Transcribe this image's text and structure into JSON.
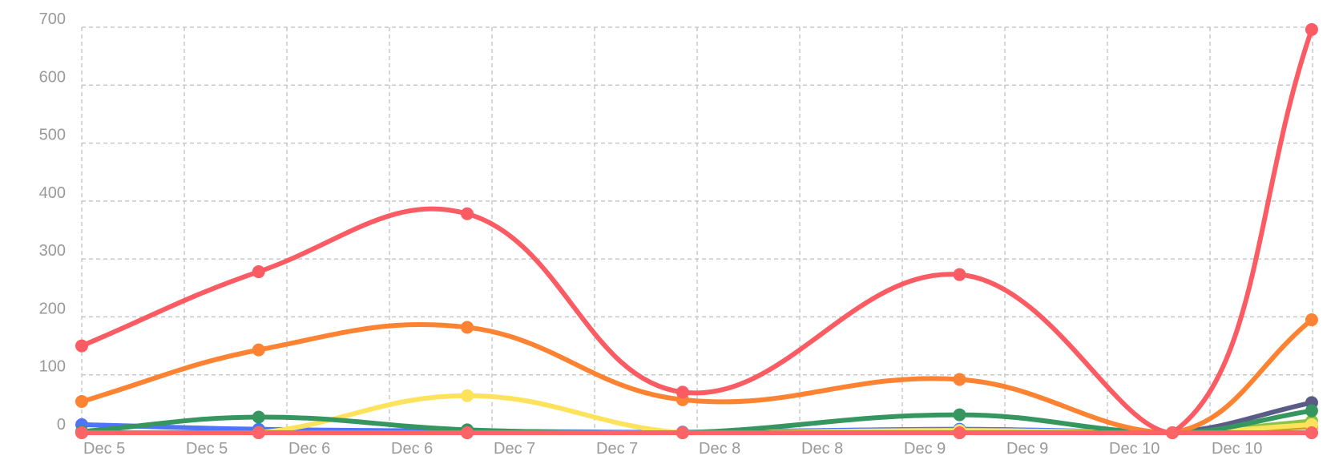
{
  "chart_data": {
    "type": "line",
    "title": "",
    "xlabel": "",
    "ylabel": "",
    "ylim": [
      0,
      700
    ],
    "yticks": [
      "0",
      "100",
      "200",
      "300",
      "400",
      "500",
      "600",
      "700"
    ],
    "ytick_values": [
      0,
      100,
      200,
      300,
      400,
      500,
      600,
      700
    ],
    "x_unit": "hours since Dec 5 00:00",
    "xlim": [
      0,
      144
    ],
    "xtick_labels": [
      "Dec 5",
      "Dec 5",
      "Dec 6",
      "Dec 6",
      "Dec 7",
      "Dec 7",
      "Dec 8",
      "Dec 8",
      "Dec 9",
      "Dec 9",
      "Dec 10",
      "Dec 10"
    ],
    "xtick_step_hours": 12,
    "grid": true,
    "x": [
      0,
      20.7,
      45.1,
      70.3,
      102.7,
      127.6,
      143.9
    ],
    "series": [
      {
        "color": "#4f74fa",
        "values": [
          14,
          6,
          3,
          1,
          6,
          0,
          0
        ]
      },
      {
        "color": "#8dc448",
        "values": [
          0,
          0,
          0,
          0,
          0,
          0,
          20
        ]
      },
      {
        "color": "#d59b22",
        "values": [
          0,
          0,
          0,
          0,
          0,
          0,
          10
        ]
      },
      {
        "color": "#5a5b86",
        "values": [
          0,
          0,
          0,
          0,
          0,
          0,
          52
        ]
      },
      {
        "color": "#fde35c",
        "values": [
          0,
          0,
          64,
          0,
          4,
          0,
          14
        ]
      },
      {
        "color": "#359660",
        "values": [
          2,
          27,
          5,
          0,
          31,
          0,
          38
        ]
      },
      {
        "color": "#fd8232",
        "values": [
          54,
          143,
          182,
          57,
          92,
          0,
          195
        ]
      },
      {
        "color": "#fb5c64",
        "values": [
          150,
          278,
          378,
          70,
          273,
          0,
          696
        ]
      },
      {
        "color": "#fd6468",
        "values": [
          0,
          0,
          0,
          0,
          0,
          0,
          0
        ]
      }
    ]
  }
}
